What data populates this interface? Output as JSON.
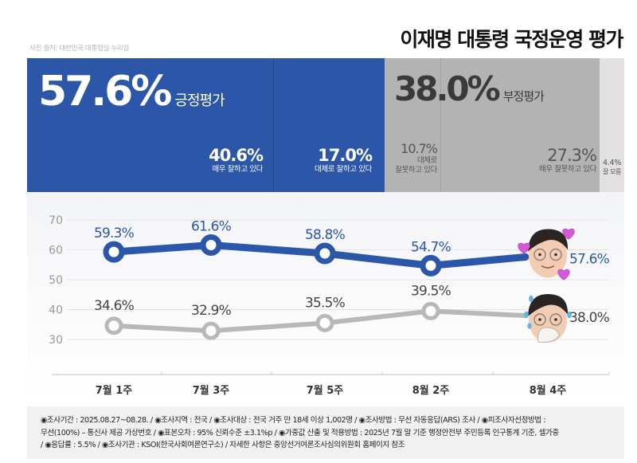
{
  "header": {
    "source_caption": "사진 출처: 대한민국 대통령실 누리집",
    "title": "이재명 대통령 국정운영 평가"
  },
  "summary": {
    "positive": {
      "value": "57.6%",
      "label": "긍정평가",
      "color": "#2c56a8"
    },
    "negative": {
      "value": "38.0%",
      "label": "부정평가",
      "color": "#b3b3b3"
    },
    "breakdown": [
      {
        "value": "40.6%",
        "label": "매우 잘하고 있다",
        "group": "positive",
        "share": 40.6
      },
      {
        "value": "17.0%",
        "label": "대체로 잘하고 있다",
        "group": "positive",
        "share": 17.0
      },
      {
        "value": "10.7%",
        "label_line1": "대체로",
        "label_line2": "잘못하고 있다",
        "group": "negative",
        "share": 10.7
      },
      {
        "value": "27.3%",
        "label": "매우 잘못하고 있다",
        "group": "negative",
        "share": 27.3
      },
      {
        "value": "4.4%",
        "label": "잘 모름",
        "group": "dont_know",
        "share": 4.4,
        "color": "#e2e0e1"
      }
    ]
  },
  "chart_data": {
    "type": "line",
    "title": "이재명 대통령 국정운영 평가",
    "xlabel": "",
    "ylabel": "",
    "ylim": [
      30,
      70
    ],
    "yticks": [
      70,
      60,
      50,
      40,
      30
    ],
    "grid": true,
    "categories": [
      "7월 1주",
      "7월 3주",
      "7월 5주",
      "8월 2주",
      "8월 4주"
    ],
    "series": [
      {
        "name": "긍정평가",
        "color": "#2c56a8",
        "values": [
          59.3,
          61.6,
          58.8,
          54.7,
          57.6
        ],
        "labels": [
          "59.3%",
          "61.6%",
          "58.8%",
          "54.7%",
          "57.6%"
        ],
        "last_marker": "smiling-face-with-hearts"
      },
      {
        "name": "부정평가",
        "color": "#b8b8b8",
        "values": [
          34.6,
          32.9,
          35.5,
          39.5,
          38.0
        ],
        "labels": [
          "34.6%",
          "32.9%",
          "35.5%",
          "39.5%",
          "38.0%"
        ],
        "last_marker": "sweating-face-covering-mouth"
      }
    ]
  },
  "footnote": {
    "lines": [
      "◉조사기간 : 2025.08.27~08.28. / ◉조사지역 : 전국 / ◉조사대상 : 전국 거주 만 18세 이상 1,002명 / ◉조사방법 : 무선 자동응답(ARS) 조사 / ◉피조사자선정방법 :",
      "무선(100%) – 통신사 제공 가상번호 / ◉표본오차 : 95% 신뢰수준 ±3.1%p / ◉가중값 산출 및 적용방법 : 2025년 7월 말 기준 행정안전부 주민등록 인구통계 기준, 셀가중",
      "/ ◉응답률 : 5.5% / ◉조사기관 : KSOI(한국사회여론연구소) / 자세한 사항은 중앙선거여론조사심의위원회 홈페이지 참조"
    ]
  }
}
